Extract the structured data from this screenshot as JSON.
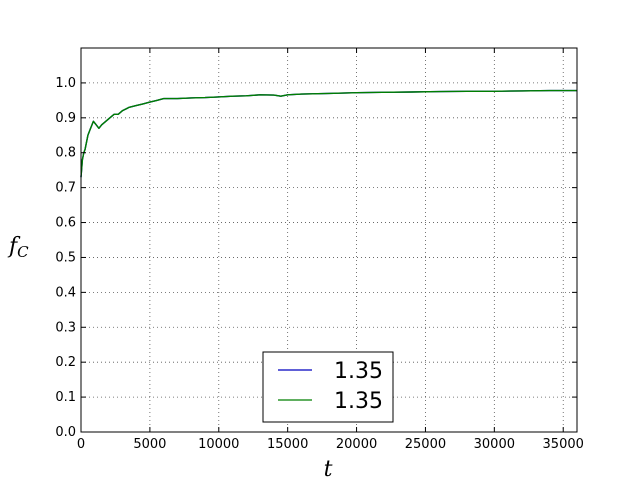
{
  "chart_data": {
    "type": "line",
    "title": "",
    "xlabel": "t",
    "ylabel_main": "f",
    "ylabel_sub": "C",
    "xlim": [
      0,
      36000
    ],
    "ylim": [
      0,
      1.1
    ],
    "x_ticks": [
      0,
      5000,
      10000,
      15000,
      20000,
      25000,
      30000,
      35000
    ],
    "x_tick_labels": [
      "0",
      "5000",
      "10000",
      "15000",
      "20000",
      "25000",
      "30000",
      "35000"
    ],
    "y_ticks": [
      0,
      0.1,
      0.2,
      0.3,
      0.4,
      0.5,
      0.6,
      0.7,
      0.8,
      0.9,
      1.0
    ],
    "y_tick_labels": [
      "0.0",
      "0.1",
      "0.2",
      "0.3",
      "0.4",
      "0.5",
      "0.6",
      "0.7",
      "0.8",
      "0.9",
      "1.0"
    ],
    "grid": true,
    "legend_placement": "bottom-center",
    "series": [
      {
        "name": "1.35",
        "color": "#0000bf",
        "x": [
          0,
          100,
          200,
          300,
          500,
          700,
          900,
          1100,
          1300,
          1500,
          1800,
          2100,
          2400,
          2700,
          3000,
          3500,
          4000,
          4500,
          5000,
          5500,
          6000,
          7000,
          8000,
          9000,
          10000,
          11000,
          12000,
          13000,
          14000,
          14500,
          15000,
          16000,
          18000,
          20000,
          22000,
          24000,
          26000,
          28000,
          30000,
          32000,
          34000,
          36000
        ],
        "y": [
          0.73,
          0.78,
          0.8,
          0.81,
          0.85,
          0.87,
          0.89,
          0.88,
          0.87,
          0.88,
          0.89,
          0.9,
          0.91,
          0.91,
          0.92,
          0.93,
          0.935,
          0.94,
          0.945,
          0.95,
          0.955,
          0.955,
          0.957,
          0.958,
          0.96,
          0.962,
          0.963,
          0.966,
          0.965,
          0.962,
          0.966,
          0.968,
          0.97,
          0.972,
          0.973,
          0.974,
          0.975,
          0.976,
          0.976,
          0.977,
          0.978,
          0.978
        ]
      },
      {
        "name": "1.35",
        "color": "#007f00",
        "x": [
          0,
          100,
          200,
          300,
          500,
          700,
          900,
          1100,
          1300,
          1500,
          1800,
          2100,
          2400,
          2700,
          3000,
          3500,
          4000,
          4500,
          5000,
          5500,
          6000,
          7000,
          8000,
          9000,
          10000,
          11000,
          12000,
          13000,
          14000,
          14500,
          15000,
          16000,
          18000,
          20000,
          22000,
          24000,
          26000,
          28000,
          30000,
          32000,
          34000,
          36000
        ],
        "y": [
          0.73,
          0.78,
          0.8,
          0.81,
          0.85,
          0.87,
          0.89,
          0.88,
          0.87,
          0.88,
          0.89,
          0.9,
          0.91,
          0.91,
          0.92,
          0.93,
          0.935,
          0.94,
          0.945,
          0.95,
          0.955,
          0.955,
          0.957,
          0.958,
          0.96,
          0.962,
          0.963,
          0.966,
          0.965,
          0.962,
          0.966,
          0.968,
          0.97,
          0.972,
          0.973,
          0.974,
          0.975,
          0.976,
          0.976,
          0.977,
          0.978,
          0.978
        ]
      }
    ]
  }
}
